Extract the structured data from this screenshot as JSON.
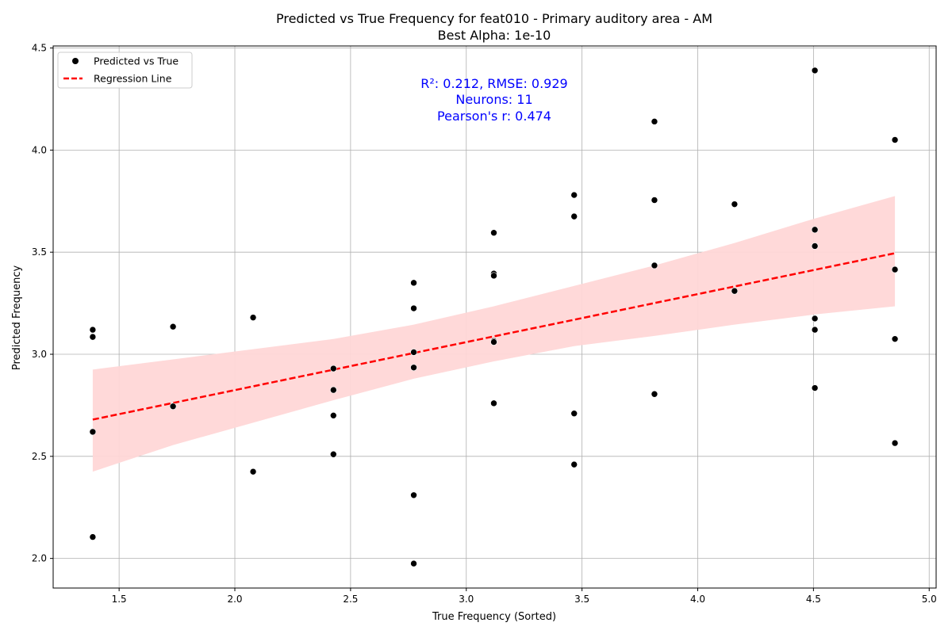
{
  "chart_data": {
    "type": "scatter",
    "title": "Predicted vs True Frequency for feat010 - Primary auditory area - AM",
    "subtitle": "Best Alpha: 1e-10",
    "xlabel": "True Frequency (Sorted)",
    "ylabel": "Predicted Frequency",
    "xlim": [
      1.215,
      5.03
    ],
    "ylim": [
      1.855,
      4.51
    ],
    "xticks": [
      "1.5",
      "2.0",
      "2.5",
      "3.0",
      "3.5",
      "4.0",
      "4.5",
      "5.0"
    ],
    "yticks": [
      "2.0",
      "2.5",
      "3.0",
      "3.5",
      "4.0",
      "4.5"
    ],
    "grid": true,
    "legend": {
      "placement": "top-left",
      "items": [
        "Predicted vs True",
        "Regression Line"
      ]
    },
    "annotation": {
      "lines": [
        "R²: 0.212, RMSE: 0.929",
        "Neurons: 11",
        "Pearson's r: 0.474"
      ],
      "color": "#0000ff"
    },
    "colors": {
      "points": "#000000",
      "regression": "#ff0000",
      "band": "#ffd7d7",
      "grid": "#b0b0b0"
    },
    "series": [
      {
        "name": "Predicted vs True",
        "points": [
          [
            1.386,
            3.12
          ],
          [
            1.386,
            3.085
          ],
          [
            1.386,
            2.62
          ],
          [
            1.386,
            2.105
          ],
          [
            1.733,
            3.135
          ],
          [
            1.733,
            2.745
          ],
          [
            2.079,
            3.18
          ],
          [
            2.079,
            2.425
          ],
          [
            2.426,
            2.93
          ],
          [
            2.426,
            2.825
          ],
          [
            2.426,
            2.7
          ],
          [
            2.426,
            2.51
          ],
          [
            2.773,
            3.35
          ],
          [
            2.773,
            3.225
          ],
          [
            2.773,
            3.01
          ],
          [
            2.773,
            2.935
          ],
          [
            2.773,
            2.31
          ],
          [
            2.773,
            1.975
          ],
          [
            3.119,
            3.595
          ],
          [
            3.119,
            3.395
          ],
          [
            3.119,
            3.385
          ],
          [
            3.119,
            3.065
          ],
          [
            3.119,
            3.06
          ],
          [
            3.119,
            2.76
          ],
          [
            3.466,
            3.78
          ],
          [
            3.466,
            3.675
          ],
          [
            3.466,
            2.71
          ],
          [
            3.466,
            2.46
          ],
          [
            3.813,
            4.14
          ],
          [
            3.813,
            3.755
          ],
          [
            3.813,
            3.435
          ],
          [
            3.813,
            2.805
          ],
          [
            4.159,
            3.735
          ],
          [
            4.159,
            3.31
          ],
          [
            4.506,
            4.39
          ],
          [
            4.506,
            3.61
          ],
          [
            4.506,
            3.53
          ],
          [
            4.506,
            3.175
          ],
          [
            4.506,
            3.12
          ],
          [
            4.506,
            2.835
          ],
          [
            4.852,
            4.05
          ],
          [
            4.852,
            3.415
          ],
          [
            4.852,
            3.075
          ],
          [
            4.852,
            2.565
          ]
        ]
      }
    ],
    "regression": {
      "name": "Regression Line",
      "x": [
        1.386,
        4.852
      ],
      "y": [
        2.68,
        3.495
      ]
    },
    "confidence_band": {
      "x": [
        1.386,
        1.733,
        2.079,
        2.426,
        2.773,
        3.119,
        3.466,
        3.813,
        4.159,
        4.506,
        4.852
      ],
      "upper": [
        2.925,
        2.975,
        3.025,
        3.075,
        3.145,
        3.235,
        3.335,
        3.435,
        3.545,
        3.665,
        3.775
      ],
      "lower": [
        2.425,
        2.555,
        2.665,
        2.775,
        2.88,
        2.965,
        3.04,
        3.09,
        3.145,
        3.195,
        3.235
      ]
    }
  }
}
